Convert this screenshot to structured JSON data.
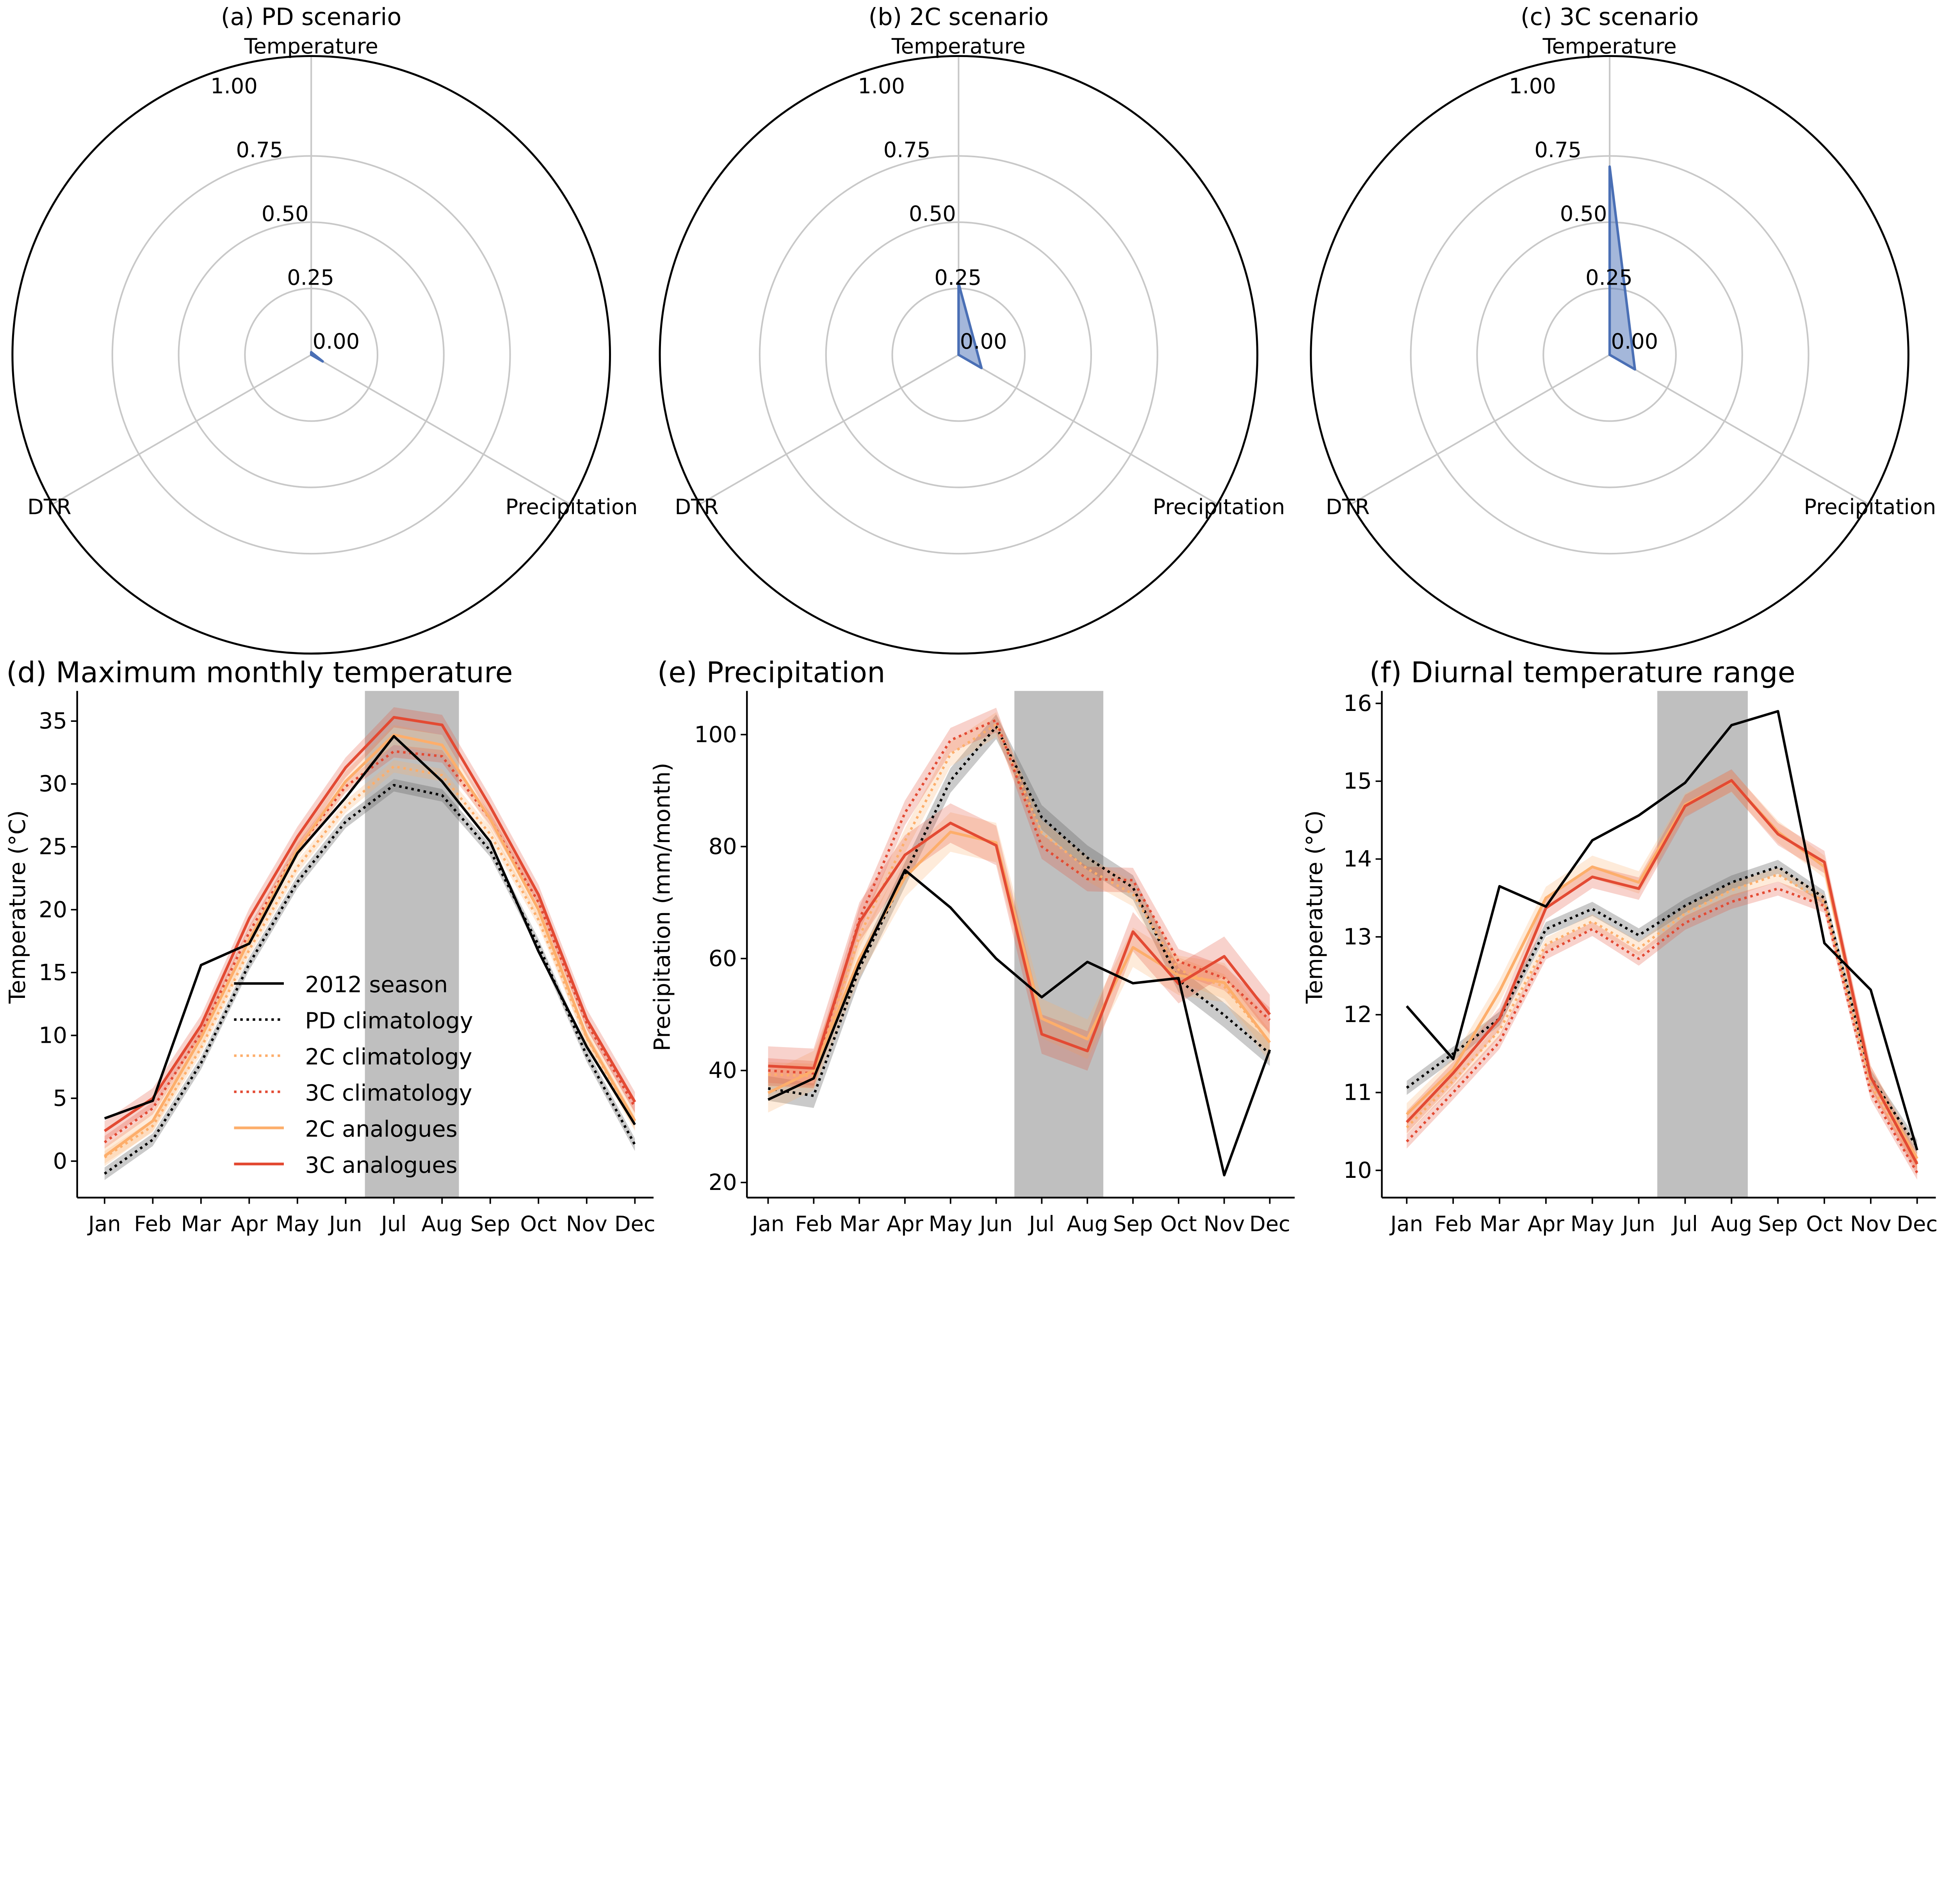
{
  "colors": {
    "pd": "#000000",
    "c2": "#fdae6b",
    "c3": "#e34a33",
    "radar_fill": "#4a6fb5",
    "highlight": "#bfbfbf"
  },
  "radar": [
    {
      "title": "(a) PD scenario",
      "axes": [
        "Temperature",
        "Precipitation",
        "DTR"
      ],
      "values": [
        0.01,
        0.05,
        0.0
      ]
    },
    {
      "title": "(b) 2C scenario",
      "axes": [
        "Temperature",
        "Precipitation",
        "DTR"
      ],
      "values": [
        0.27,
        0.1,
        0.0
      ]
    },
    {
      "title": "(c) 3C scenario",
      "axes": [
        "Temperature",
        "Precipitation",
        "DTR"
      ],
      "values": [
        0.71,
        0.11,
        0.0
      ]
    }
  ],
  "radar_ticks": [
    "0.00",
    "0.25",
    "0.50",
    "0.75",
    "1.00"
  ],
  "radar_tick_values": [
    0,
    0.25,
    0.5,
    0.75,
    1.0
  ],
  "legend": [
    "2012 season",
    "PD climatology",
    "2C climatology",
    "3C climatology",
    "2C analogues",
    "3C analogues"
  ],
  "chart_data": [
    {
      "type": "line",
      "title": "(d) Maximum monthly temperature",
      "ylabel": "Temperature (°C)",
      "categories": [
        "Jan",
        "Feb",
        "Mar",
        "Apr",
        "May",
        "Jun",
        "Jul",
        "Aug",
        "Sep",
        "Oct",
        "Nov",
        "Dec"
      ],
      "ylim": [
        -2.9,
        37.4
      ],
      "yticks": [
        0,
        5,
        10,
        15,
        20,
        25,
        30,
        35
      ],
      "highlight": [
        "Jul",
        "Aug"
      ],
      "legend": "lower-center",
      "series": [
        {
          "name": "2012 season",
          "values": [
            3.4,
            4.8,
            15.6,
            17.3,
            24.5,
            28.9,
            33.8,
            30.2,
            25.4,
            16.7,
            9.1,
            2.9
          ]
        },
        {
          "name": "PD climatology",
          "values": [
            -1.0,
            1.7,
            7.8,
            15.7,
            22.2,
            27.0,
            29.9,
            29.1,
            24.7,
            17.2,
            8.4,
            1.3
          ]
        },
        {
          "name": "2C climatology",
          "values": [
            0.3,
            2.8,
            9.0,
            16.8,
            23.4,
            28.2,
            31.4,
            30.7,
            26.0,
            19.2,
            9.8,
            3.0
          ]
        },
        {
          "name": "3C climatology",
          "values": [
            1.5,
            4.2,
            10.2,
            18.2,
            24.8,
            29.8,
            32.6,
            32.2,
            27.2,
            20.6,
            11.0,
            4.3
          ]
        },
        {
          "name": "2C analogues",
          "values": [
            0.4,
            3.2,
            9.8,
            17.6,
            24.8,
            30.2,
            33.9,
            33.1,
            27.2,
            20.0,
            9.9,
            3.2
          ]
        },
        {
          "name": "3C analogues",
          "values": [
            2.4,
            5.0,
            10.8,
            19.3,
            25.8,
            31.3,
            35.3,
            34.7,
            28.2,
            21.2,
            11.3,
            4.7
          ]
        }
      ]
    },
    {
      "type": "line",
      "title": "(e) Precipitation",
      "ylabel": "Precipitation (mm/month)",
      "categories": [
        "Jan",
        "Feb",
        "Mar",
        "Apr",
        "May",
        "Jun",
        "Jul",
        "Aug",
        "Sep",
        "Oct",
        "Nov",
        "Dec"
      ],
      "ylim": [
        17.3,
        107.8
      ],
      "yticks": [
        20,
        40,
        60,
        80,
        100
      ],
      "highlight": [
        "Jul",
        "Aug"
      ],
      "series": [
        {
          "name": "2012 season",
          "values": [
            34.8,
            38.6,
            59.0,
            75.8,
            69.1,
            60.0,
            53.1,
            59.4,
            55.6,
            56.5,
            21.3,
            43.7
          ]
        },
        {
          "name": "PD climatology",
          "values": [
            36.8,
            35.5,
            58.2,
            75.0,
            91.8,
            101.4,
            85.2,
            78.0,
            72.7,
            56.2,
            49.9,
            43.0
          ]
        },
        {
          "name": "2C climatology",
          "values": [
            39.3,
            39.0,
            64.0,
            81.0,
            96.5,
            101.8,
            82.5,
            76.0,
            71.5,
            58.0,
            55.0,
            45.0
          ]
        },
        {
          "name": "3C climatology",
          "values": [
            40.0,
            39.5,
            67.0,
            86.0,
            99.0,
            102.6,
            80.0,
            74.2,
            74.0,
            59.5,
            56.5,
            49.0
          ]
        },
        {
          "name": "2C analogues",
          "values": [
            36.0,
            40.0,
            60.0,
            74.5,
            82.6,
            80.7,
            49.3,
            45.6,
            62.0,
            57.0,
            55.7,
            45.0
          ]
        },
        {
          "name": "3C analogues",
          "values": [
            40.8,
            40.4,
            66.5,
            78.5,
            84.2,
            80.2,
            46.5,
            43.5,
            64.8,
            55.5,
            60.4,
            50.0
          ]
        }
      ]
    },
    {
      "type": "line",
      "title": "(f) Diurnal temperature range",
      "ylabel": "Temperature (°C)",
      "categories": [
        "Jan",
        "Feb",
        "Mar",
        "Apr",
        "May",
        "Jun",
        "Jul",
        "Aug",
        "Sep",
        "Oct",
        "Nov",
        "Dec"
      ],
      "ylim": [
        9.65,
        16.16
      ],
      "yticks": [
        10,
        11,
        12,
        13,
        14,
        15,
        16
      ],
      "highlight": [
        "Jul",
        "Aug"
      ],
      "series": [
        {
          "name": "2012 season",
          "values": [
            12.11,
            11.43,
            13.65,
            13.39,
            14.24,
            14.56,
            14.98,
            15.72,
            15.9,
            12.92,
            12.32,
            10.26
          ]
        },
        {
          "name": "PD climatology",
          "values": [
            11.06,
            11.5,
            11.95,
            13.1,
            13.36,
            13.02,
            13.4,
            13.7,
            13.9,
            13.5,
            11.2,
            10.3
          ]
        },
        {
          "name": "2C climatology",
          "values": [
            10.55,
            11.15,
            11.8,
            12.9,
            13.2,
            12.85,
            13.3,
            13.6,
            13.8,
            13.45,
            11.1,
            10.1
          ]
        },
        {
          "name": "3C climatology",
          "values": [
            10.37,
            11.0,
            11.65,
            12.8,
            13.1,
            12.72,
            13.18,
            13.45,
            13.62,
            13.4,
            11.0,
            9.97
          ]
        },
        {
          "name": "2C analogues",
          "values": [
            10.72,
            11.3,
            12.3,
            13.5,
            13.9,
            13.7,
            14.7,
            15.0,
            14.35,
            13.9,
            11.2,
            10.15
          ]
        },
        {
          "name": "3C analogues",
          "values": [
            10.62,
            11.25,
            11.95,
            13.37,
            13.77,
            13.62,
            14.68,
            15.01,
            14.32,
            13.96,
            11.2,
            10.08
          ]
        }
      ]
    }
  ]
}
